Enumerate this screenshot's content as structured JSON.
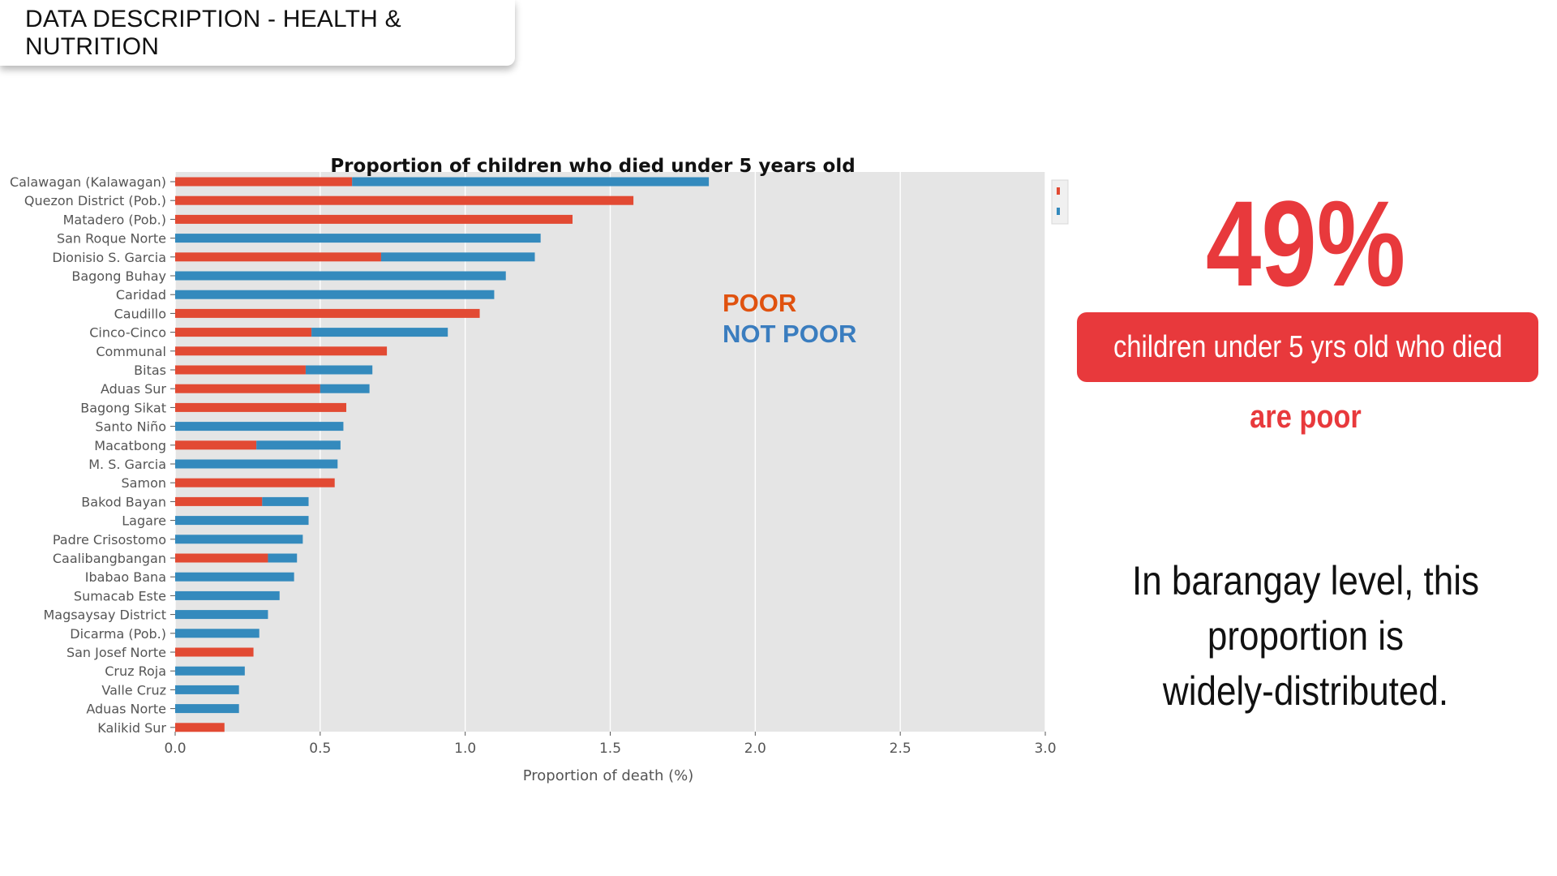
{
  "header": {
    "title": "DATA DESCRIPTION - HEALTH & NUTRITION"
  },
  "stat": {
    "value": "49%",
    "banner": "children under 5 yrs old who died",
    "sub": "are poor",
    "color": "#e8393c"
  },
  "note": {
    "lines": [
      "In barangay level, this",
      "proportion is",
      "widely-distributed."
    ]
  },
  "annotations": {
    "poor": "POOR",
    "not_poor": "NOT POOR",
    "poor_color": "#e0520f",
    "not_poor_color": "#3a7dbf"
  },
  "chart_data": {
    "type": "bar",
    "orientation": "horizontal",
    "stacked": true,
    "title": "Proportion of children who died under 5 years old",
    "xlabel": "Proportion of death (%)",
    "ylabel": "",
    "xlim": [
      0,
      3.0
    ],
    "xticks": [
      "0.0",
      "0.5",
      "1.0",
      "1.5",
      "2.0",
      "2.5",
      "3.0"
    ],
    "grid": true,
    "legend": "top-right",
    "colors": {
      "poor": "#e24a33",
      "not_poor": "#348abd",
      "background": "#e5e5e5"
    },
    "categories": [
      "Calawagan (Kalawagan)",
      "Quezon District (Pob.)",
      "Matadero (Pob.)",
      "San Roque Norte",
      "Dionisio S. Garcia",
      "Bagong Buhay",
      "Caridad",
      "Caudillo",
      "Cinco-Cinco",
      "Communal",
      "Bitas",
      "Aduas Sur",
      "Bagong Sikat",
      "Santo Niño",
      "Macatbong",
      "M. S. Garcia",
      "Samon",
      "Bakod Bayan",
      "Lagare",
      "Padre Crisostomo",
      "Caalibangbangan",
      "Ibabao Bana",
      "Sumacab Este",
      "Magsaysay District",
      "Dicarma (Pob.)",
      "San Josef Norte",
      "Cruz Roja",
      "Valle Cruz",
      "Aduas Norte",
      "Kalikid Sur"
    ],
    "series": [
      {
        "key": "poor",
        "values": [
          0.61,
          1.58,
          1.37,
          0,
          0.71,
          0,
          0,
          1.05,
          0.47,
          0.73,
          0.45,
          0.5,
          0.59,
          0,
          0.28,
          0,
          0.55,
          0.3,
          0,
          0,
          0.32,
          0,
          0,
          0,
          0,
          0.27,
          0,
          0,
          0,
          0.17
        ]
      },
      {
        "key": "not_poor",
        "values": [
          1.23,
          0,
          0,
          1.26,
          0.53,
          1.14,
          1.1,
          0,
          0.47,
          0,
          0.23,
          0.17,
          0,
          0.58,
          0.29,
          0.56,
          0,
          0.16,
          0.46,
          0.44,
          0.1,
          0.41,
          0.36,
          0.32,
          0.29,
          0,
          0.24,
          0.22,
          0.22,
          0
        ]
      }
    ]
  }
}
